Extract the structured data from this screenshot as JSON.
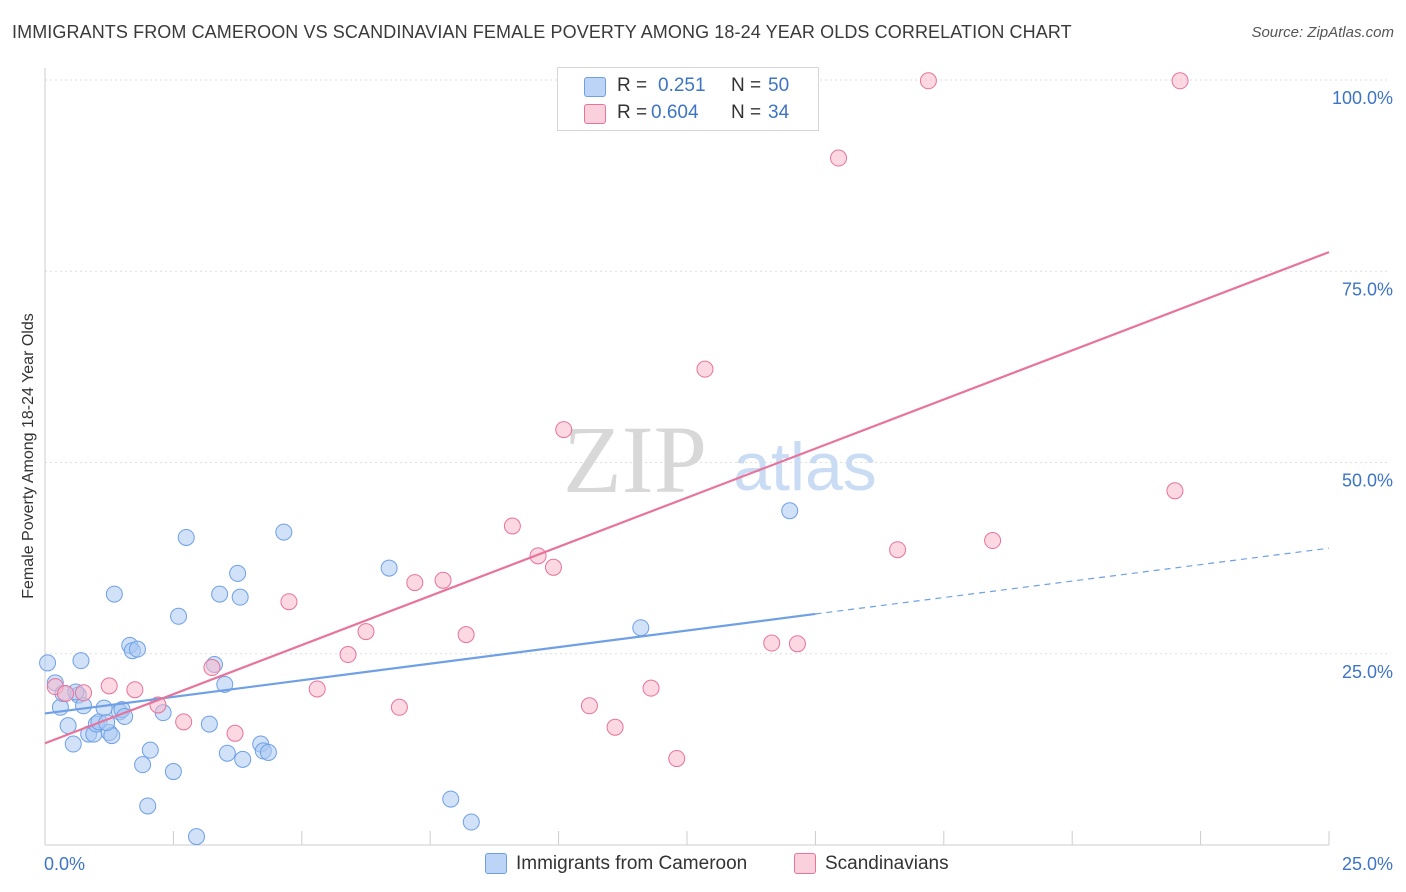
{
  "header": {
    "title": "IMMIGRANTS FROM CAMEROON VS SCANDINAVIAN FEMALE POVERTY AMONG 18-24 YEAR OLDS CORRELATION CHART",
    "source": "Source: ZipAtlas.com"
  },
  "watermark": {
    "zip": "ZIP",
    "atlas": "atlas"
  },
  "legend": {
    "rows": [
      {
        "r_label": "R =",
        "r_value": "0.251",
        "n_label": "N =",
        "n_value": "50",
        "color": "#aac8f2"
      },
      {
        "r_label": "R =",
        "r_value": "0.604",
        "n_label": "N =",
        "n_value": "34",
        "color": "#f7b8cb"
      }
    ]
  },
  "bottom_legend": [
    {
      "label": "Immigrants from Cameroon",
      "color": "#aac8f2"
    },
    {
      "label": "Scandinavians",
      "color": "#f7b8cb"
    }
  ],
  "chart_data": {
    "type": "scatter",
    "title": "IMMIGRANTS FROM CAMEROON VS SCANDINAVIAN FEMALE POVERTY AMONG 18-24 YEAR OLDS CORRELATION CHART",
    "ylabel": "Female Poverty Among 18-24 Year Olds",
    "xlabel": "",
    "xlim": [
      0,
      25
    ],
    "ylim": [
      0,
      100
    ],
    "x_tick_labels": [
      "0.0%",
      "25.0%"
    ],
    "y_tick_labels": [
      "25.0%",
      "50.0%",
      "75.0%",
      "100.0%"
    ],
    "y_ticks": [
      25,
      50,
      75,
      100
    ],
    "grid": true,
    "legend_position": "top-center",
    "series": [
      {
        "name": "Immigrants from Cameroon",
        "color": "#6fa0e6",
        "fill": "#aac8f2",
        "R": 0.251,
        "N": 50,
        "trend": {
          "x0": 0,
          "y0": 17.2,
          "x1": 15,
          "y1": 30.2,
          "dashed_to_x": 25,
          "dashed_to_y": 38.8
        },
        "points": [
          [
            0.05,
            23.8
          ],
          [
            0.2,
            21.2
          ],
          [
            0.3,
            18.0
          ],
          [
            0.35,
            19.8
          ],
          [
            0.45,
            15.6
          ],
          [
            0.55,
            13.2
          ],
          [
            0.65,
            19.6
          ],
          [
            0.7,
            24.1
          ],
          [
            0.75,
            18.2
          ],
          [
            0.85,
            14.5
          ],
          [
            0.95,
            14.5
          ],
          [
            1.0,
            15.8
          ],
          [
            1.05,
            16.1
          ],
          [
            1.15,
            17.9
          ],
          [
            1.25,
            14.7
          ],
          [
            1.3,
            14.3
          ],
          [
            1.35,
            32.8
          ],
          [
            1.45,
            17.4
          ],
          [
            1.5,
            17.7
          ],
          [
            1.55,
            16.8
          ],
          [
            1.65,
            26.1
          ],
          [
            1.7,
            25.4
          ],
          [
            1.8,
            25.6
          ],
          [
            1.9,
            10.5
          ],
          [
            2.0,
            5.1
          ],
          [
            2.05,
            12.4
          ],
          [
            2.3,
            17.3
          ],
          [
            2.5,
            9.6
          ],
          [
            2.6,
            29.9
          ],
          [
            2.75,
            40.2
          ],
          [
            2.95,
            1.1
          ],
          [
            3.2,
            15.8
          ],
          [
            3.3,
            23.6
          ],
          [
            3.4,
            32.8
          ],
          [
            3.5,
            21.0
          ],
          [
            3.55,
            12.0
          ],
          [
            3.75,
            35.5
          ],
          [
            3.8,
            32.4
          ],
          [
            3.85,
            11.2
          ],
          [
            4.2,
            13.2
          ],
          [
            4.25,
            12.3
          ],
          [
            4.35,
            12.1
          ],
          [
            4.65,
            40.9
          ],
          [
            6.7,
            36.2
          ],
          [
            7.9,
            6.0
          ],
          [
            8.3,
            3.0
          ],
          [
            11.6,
            28.4
          ],
          [
            14.5,
            43.7
          ],
          [
            0.6,
            20.0
          ],
          [
            1.2,
            16.0
          ]
        ]
      },
      {
        "name": "Scandinavians",
        "color": "#e8739b",
        "fill": "#f7b8cb",
        "R": 0.604,
        "N": 34,
        "trend": {
          "x0": 0,
          "y0": 13.3,
          "x1": 25,
          "y1": 77.5
        },
        "points": [
          [
            0.2,
            20.7
          ],
          [
            0.4,
            19.8
          ],
          [
            0.75,
            19.9
          ],
          [
            1.25,
            20.8
          ],
          [
            1.75,
            20.3
          ],
          [
            2.2,
            18.3
          ],
          [
            2.7,
            16.1
          ],
          [
            3.25,
            23.2
          ],
          [
            3.7,
            14.6
          ],
          [
            4.75,
            31.8
          ],
          [
            5.3,
            20.4
          ],
          [
            5.9,
            24.9
          ],
          [
            6.25,
            27.9
          ],
          [
            6.9,
            18.0
          ],
          [
            7.2,
            34.3
          ],
          [
            7.75,
            34.6
          ],
          [
            8.2,
            27.5
          ],
          [
            9.1,
            41.7
          ],
          [
            9.6,
            37.8
          ],
          [
            9.9,
            36.3
          ],
          [
            10.1,
            54.3
          ],
          [
            10.6,
            18.2
          ],
          [
            11.1,
            15.4
          ],
          [
            11.8,
            20.5
          ],
          [
            12.3,
            11.3
          ],
          [
            12.85,
            62.2
          ],
          [
            14.15,
            26.4
          ],
          [
            14.65,
            26.3
          ],
          [
            15.45,
            89.8
          ],
          [
            16.6,
            38.6
          ],
          [
            17.2,
            99.9
          ],
          [
            18.45,
            39.8
          ],
          [
            22.0,
            46.3
          ],
          [
            22.1,
            99.9
          ]
        ]
      }
    ]
  }
}
